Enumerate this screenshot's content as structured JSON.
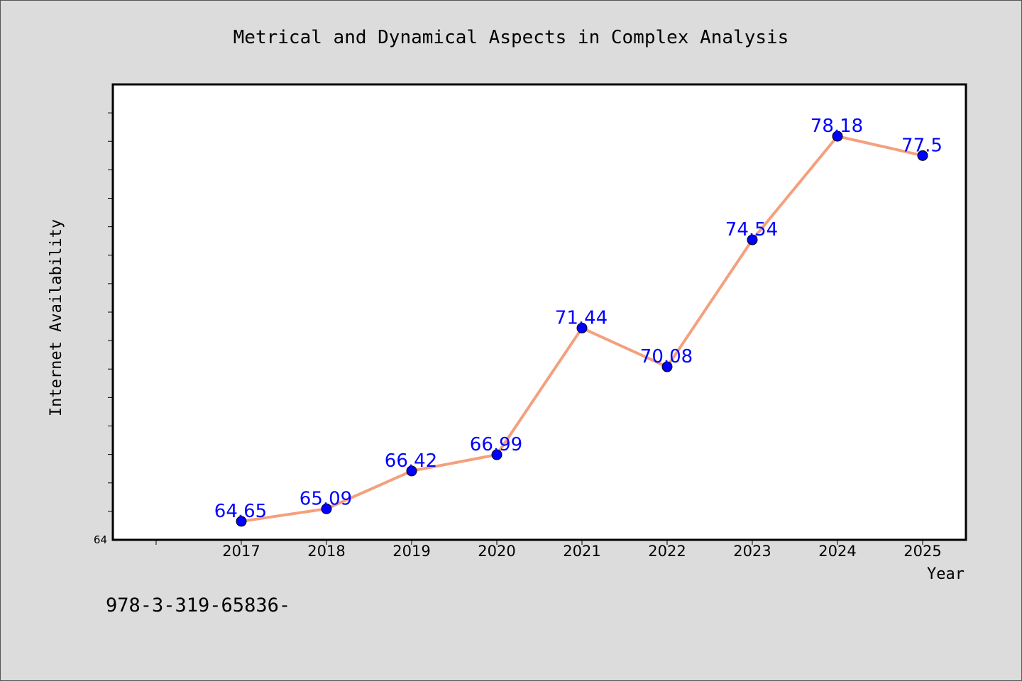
{
  "chart_data": {
    "type": "line",
    "title": "Metrical and Dynamical Aspects in Complex Analysis",
    "xlabel": "Year",
    "ylabel": "Internet Availability",
    "categories": [
      "2017",
      "2018",
      "2019",
      "2020",
      "2021",
      "2022",
      "2023",
      "2024",
      "2025"
    ],
    "series": [
      {
        "values": [
          64.65,
          65.09,
          66.42,
          66.99,
          71.44,
          70.08,
          74.54,
          78.18,
          77.5
        ],
        "labels": [
          "64.65",
          "65.09",
          "66.42",
          "66.99",
          "71.44",
          "70.08",
          "74.54",
          "78.18",
          "77.5"
        ]
      }
    ],
    "ylim": [
      64,
      80
    ],
    "y_tick_labels": [
      "64"
    ],
    "grid": false,
    "line_color": "#f4a07e",
    "marker_color": "#0000ff",
    "label_color": "#0000ff"
  },
  "footnote": "978-3-319-65836-"
}
